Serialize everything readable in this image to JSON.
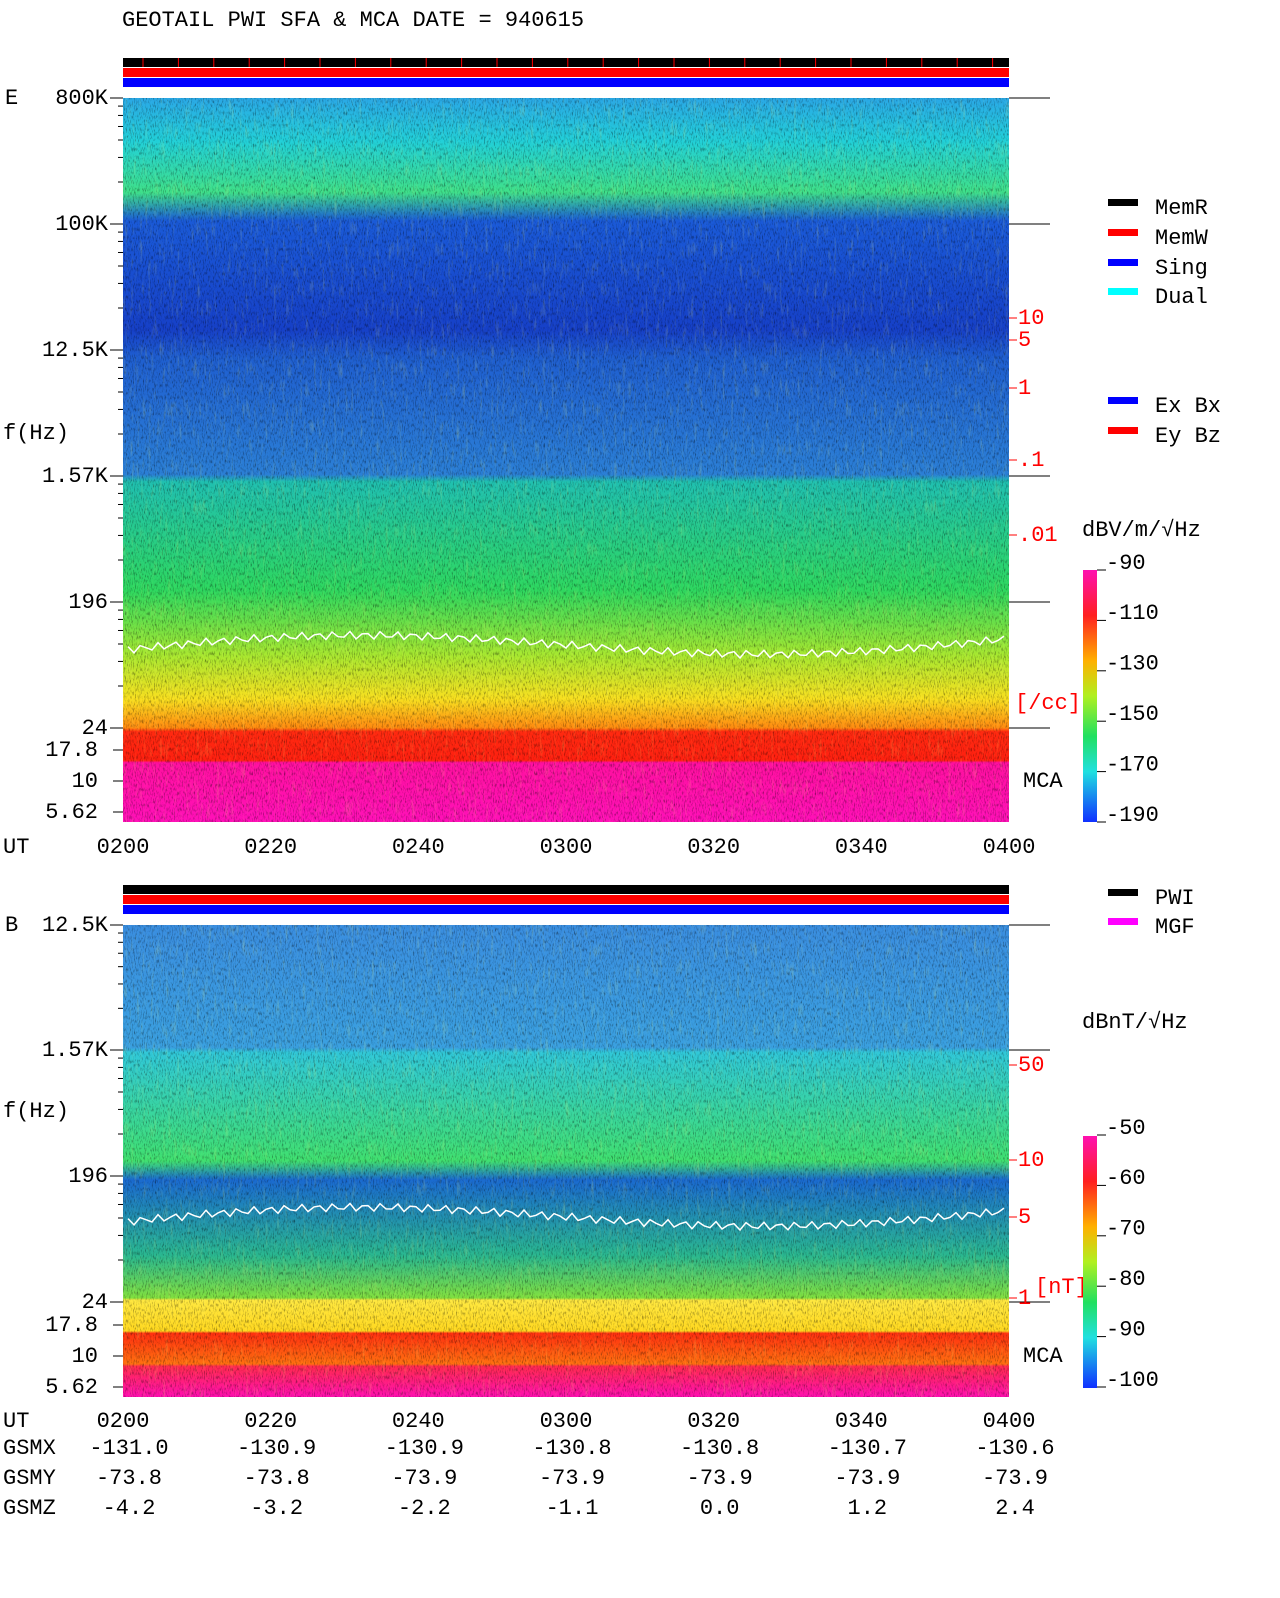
{
  "header": {
    "title": "GEOTAIL  PWI SFA & MCA   DATE = 940615"
  },
  "panels": [
    {
      "label": "E",
      "y_axis_label": "f(Hz)",
      "y_tick_labels": [
        "800K",
        "100K",
        "12.5K",
        "1.57K",
        "196",
        "24"
      ],
      "mca_tick_labels": [
        "17.8",
        "10",
        "5.62"
      ],
      "x_axis_label": "UT",
      "x_tick_labels": [
        "0200",
        "0220",
        "0240",
        "0300",
        "0320",
        "0340",
        "0400"
      ],
      "right_scale_labels": [
        "10",
        "5",
        "1",
        ".1",
        ".01"
      ],
      "right_scale_unit": "[/cc]",
      "mca_label": "MCA",
      "colorbar_unit": "dBV/m/√Hz",
      "colorbar_ticks": [
        -90,
        -110,
        -130,
        -150,
        -170,
        -190
      ],
      "legends": [
        [
          {
            "name": "MemR",
            "color": "#000000"
          },
          {
            "name": "MemW",
            "color": "#ff0000"
          },
          {
            "name": "Sing",
            "color": "#0000ff"
          },
          {
            "name": "Dual",
            "color": "#00ffff"
          }
        ],
        [
          {
            "name": "Ex Bx",
            "color": "#0000ff"
          },
          {
            "name": "Ey Bz",
            "color": "#ff0000"
          }
        ]
      ]
    },
    {
      "label": "B",
      "y_axis_label": "f(Hz)",
      "y_tick_labels": [
        "12.5K",
        "1.57K",
        "196",
        "24"
      ],
      "mca_tick_labels": [
        "17.8",
        "10",
        "5.62"
      ],
      "x_axis_label": "UT",
      "x_tick_labels": [
        "0200",
        "0220",
        "0240",
        "0300",
        "0320",
        "0340",
        "0400"
      ],
      "right_scale_labels": [
        "50",
        "10",
        "5",
        "1"
      ],
      "right_scale_unit": "[nT]",
      "mca_label": "MCA",
      "colorbar_unit": "dBnT/√Hz",
      "colorbar_ticks": [
        -50,
        -60,
        -70,
        -80,
        -90,
        -100
      ],
      "legends": [
        [
          {
            "name": "PWI",
            "color": "#000000"
          },
          {
            "name": "MGF",
            "color": "#ff00ff"
          }
        ]
      ]
    }
  ],
  "orbit_table": {
    "rows": [
      {
        "label": "GSMX",
        "values": [
          "-131.0",
          "-130.9",
          "-130.9",
          "-130.8",
          "-130.8",
          "-130.7",
          "-130.6"
        ]
      },
      {
        "label": "GSMY",
        "values": [
          "-73.8",
          "-73.8",
          "-73.9",
          "-73.9",
          "-73.9",
          "-73.9",
          "-73.9"
        ]
      },
      {
        "label": "GSMZ",
        "values": [
          "-4.2",
          "-3.2",
          "-2.2",
          "-1.1",
          "0.0",
          "1.2",
          "2.4"
        ]
      }
    ]
  }
}
